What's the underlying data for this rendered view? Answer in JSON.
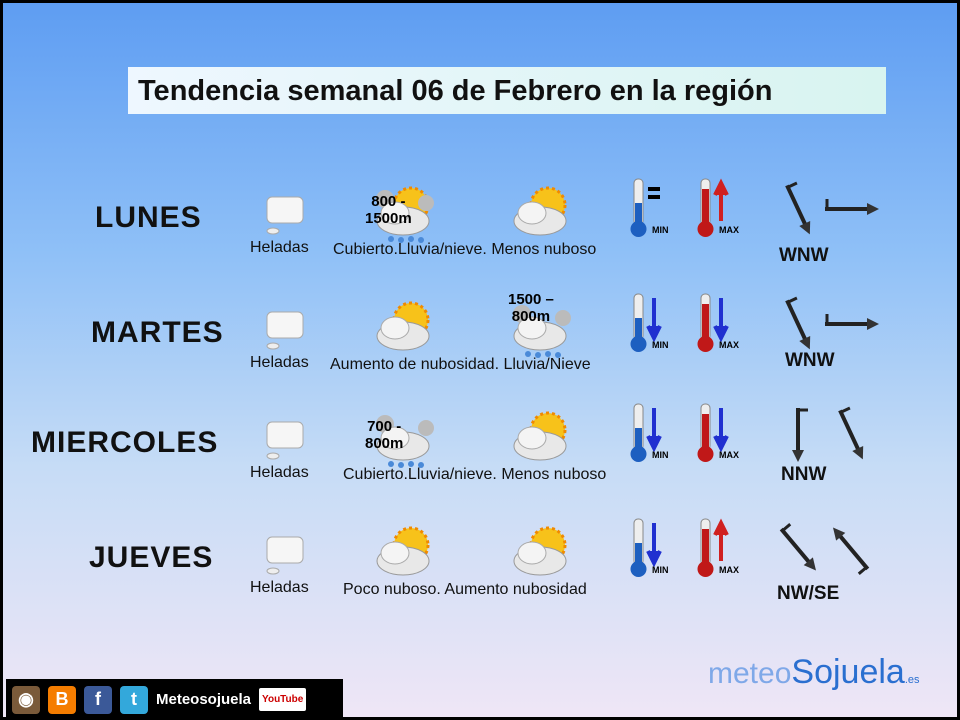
{
  "title": "Tendencia semanal 06 de Febrero en la región",
  "days": [
    {
      "name": "LUNES",
      "frost": "Heladas",
      "desc": "Cubierto.Lluvia/nieve. Menos nuboso",
      "altitude_line1": "800 -",
      "altitude_line2": "1500m",
      "icon1": "snow-rain-sun-icon",
      "icon2": "sun-behind-clouds-icon",
      "min_trend": "equal",
      "max_trend": "up",
      "wind": "WNW"
    },
    {
      "name": "MARTES",
      "frost": "Heladas",
      "desc": "Aumento de nubosidad. Lluvia/Nieve",
      "altitude_line1": "1500 –",
      "altitude_line2": "800m",
      "icon1": "sun-behind-clouds-icon",
      "icon2": "snow-rain-icon",
      "min_trend": "down",
      "max_trend": "down",
      "wind": "WNW"
    },
    {
      "name": "MIERCOLES",
      "frost": "Heladas",
      "desc": "Cubierto.Lluvia/nieve. Menos nuboso",
      "altitude_line1": "700 -",
      "altitude_line2": "800m",
      "icon1": "snow-rain-icon",
      "icon2": "sun-behind-clouds-icon",
      "min_trend": "down",
      "max_trend": "down",
      "wind": "NNW"
    },
    {
      "name": "JUEVES",
      "frost": "Heladas",
      "desc": "Poco nuboso. Aumento nubosidad",
      "icon1": "sun-cloud-icon",
      "icon2": "sun-behind-clouds-icon",
      "min_trend": "down",
      "max_trend": "up",
      "wind": "NW/SE"
    }
  ],
  "thermo": {
    "min": "MIN",
    "max": "MAX"
  },
  "footer": {
    "social_name": "Meteosojuela",
    "youtube": "YouTube",
    "logo_a": "meteo",
    "logo_b": "Sojuela",
    "logo_c": ".es"
  },
  "colors": {
    "up": "#d02020",
    "down": "#2030d0",
    "min_bulb": "#1d5fc0",
    "max_bulb": "#c01818"
  }
}
